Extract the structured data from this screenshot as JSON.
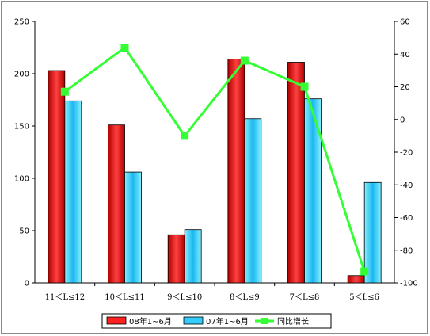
{
  "chart_data": {
    "type": "bar",
    "categories": [
      "11＜L≤12",
      "10＜L≤11",
      "9＜L≤10",
      "8＜L≤9",
      "7＜L≤8",
      "5＜L≤6"
    ],
    "series": [
      {
        "name": "08年1~6月",
        "type": "bar",
        "axis": "left",
        "color": "#ff2020",
        "values": [
          203,
          151,
          46,
          214,
          211,
          7
        ]
      },
      {
        "name": "07年1~6月",
        "type": "bar",
        "axis": "left",
        "color": "#33ccff",
        "values": [
          174,
          106,
          51,
          157,
          176,
          96
        ]
      },
      {
        "name": "同比增长",
        "type": "line",
        "axis": "right",
        "color": "#33ff33",
        "values": [
          17,
          44,
          -10,
          36,
          20,
          -93
        ]
      }
    ],
    "ylim": [
      0,
      250
    ],
    "y_ticks": [
      "0",
      "50",
      "100",
      "150",
      "200",
      "250"
    ],
    "y2lim": [
      -100,
      60
    ],
    "y2_ticks": [
      "-100",
      "-80",
      "-60",
      "-40",
      "-20",
      "0",
      "20",
      "40",
      "60"
    ],
    "grid": false,
    "legend_position": "bottom"
  }
}
